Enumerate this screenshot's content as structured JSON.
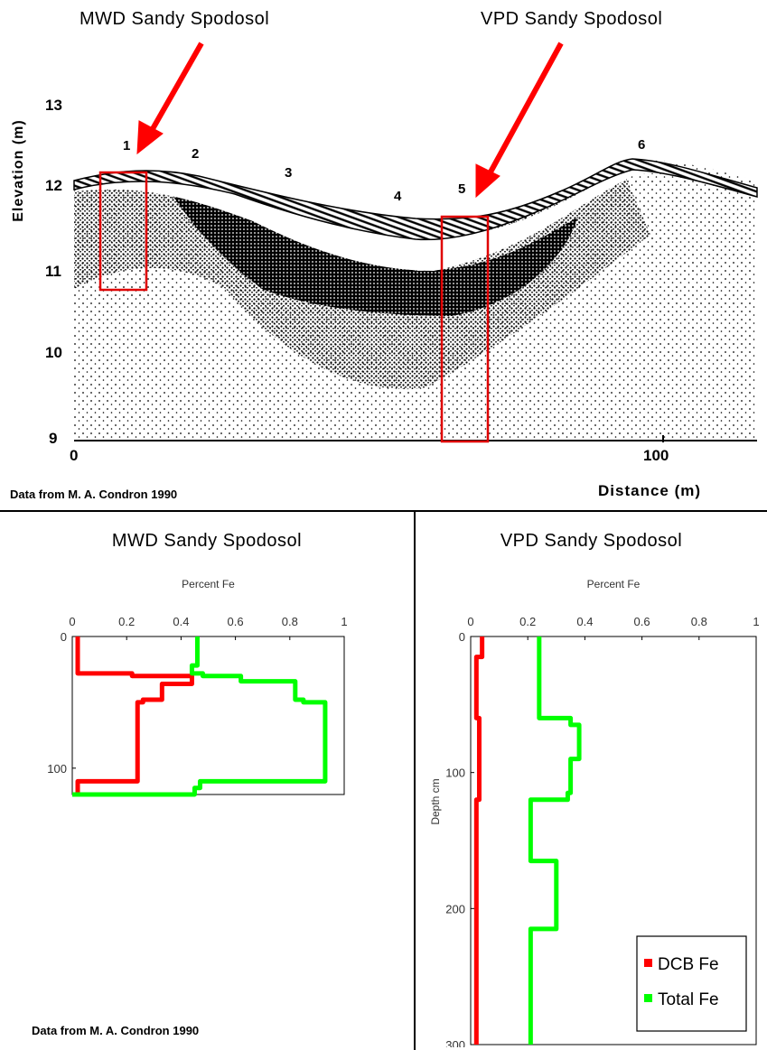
{
  "cross_section": {
    "label_left": "MWD Sandy Spodosol",
    "label_right": "VPD Sandy Spodosol",
    "ylabel": "Elevation (m)",
    "xlabel": "Distance (m)",
    "credit": "Data from M. A. Condron 1990",
    "y_ticks": [
      "13",
      "12",
      "11",
      "10",
      "9"
    ],
    "x_ticks": [
      "0",
      "100"
    ],
    "site_numbers": [
      "1",
      "2",
      "3",
      "4",
      "5",
      "6"
    ],
    "arrow_color": "#ff0000",
    "box_color": "#e00000"
  },
  "chart_data": [
    {
      "type": "line",
      "title": "MWD Sandy Spodosol",
      "xlabel": "Percent Fe",
      "ylabel": "",
      "xlim": [
        0,
        1
      ],
      "ylim": [
        0,
        120
      ],
      "x_ticks": [
        "0",
        "0.2",
        "0.4",
        "0.6",
        "0.8",
        "1"
      ],
      "y_ticks": [
        "0",
        "100"
      ],
      "credit": "Data from M. A. Condron 1990",
      "series": [
        {
          "name": "DCB Fe",
          "color": "#ff0000",
          "points": [
            [
              0.02,
              0
            ],
            [
              0.02,
              28
            ],
            [
              0.22,
              28
            ],
            [
              0.22,
              30
            ],
            [
              0.44,
              30
            ],
            [
              0.44,
              36
            ],
            [
              0.33,
              36
            ],
            [
              0.33,
              48
            ],
            [
              0.26,
              48
            ],
            [
              0.26,
              50
            ],
            [
              0.24,
              50
            ],
            [
              0.24,
              110
            ],
            [
              0.02,
              110
            ],
            [
              0.02,
              120
            ]
          ]
        },
        {
          "name": "Total Fe",
          "color": "#00ff00",
          "points": [
            [
              0.46,
              0
            ],
            [
              0.46,
              22
            ],
            [
              0.44,
              22
            ],
            [
              0.44,
              28
            ],
            [
              0.48,
              28
            ],
            [
              0.48,
              30
            ],
            [
              0.62,
              30
            ],
            [
              0.62,
              34
            ],
            [
              0.82,
              34
            ],
            [
              0.82,
              48
            ],
            [
              0.85,
              48
            ],
            [
              0.85,
              50
            ],
            [
              0.93,
              50
            ],
            [
              0.93,
              110
            ],
            [
              0.47,
              110
            ],
            [
              0.47,
              115
            ],
            [
              0.45,
              115
            ],
            [
              0.45,
              120
            ],
            [
              0.0,
              120
            ]
          ]
        }
      ]
    },
    {
      "type": "line",
      "title": "VPD Sandy Spodosol",
      "xlabel": "Percent Fe",
      "ylabel": "Depth cm",
      "xlim": [
        0,
        1
      ],
      "ylim": [
        0,
        300
      ],
      "x_ticks": [
        "0",
        "0.2",
        "0.4",
        "0.6",
        "0.8",
        "1"
      ],
      "y_ticks": [
        "0",
        "100",
        "200",
        "300"
      ],
      "legend": [
        "DCB Fe",
        "Total Fe"
      ],
      "legend_position": "bottom-right",
      "series": [
        {
          "name": "DCB Fe",
          "color": "#ff0000",
          "points": [
            [
              0.04,
              0
            ],
            [
              0.04,
              15
            ],
            [
              0.02,
              15
            ],
            [
              0.02,
              60
            ],
            [
              0.03,
              60
            ],
            [
              0.03,
              120
            ],
            [
              0.02,
              120
            ],
            [
              0.02,
              300
            ]
          ]
        },
        {
          "name": "Total Fe",
          "color": "#00ff00",
          "points": [
            [
              0.24,
              0
            ],
            [
              0.24,
              60
            ],
            [
              0.35,
              60
            ],
            [
              0.35,
              65
            ],
            [
              0.38,
              65
            ],
            [
              0.38,
              90
            ],
            [
              0.35,
              90
            ],
            [
              0.35,
              115
            ],
            [
              0.34,
              115
            ],
            [
              0.34,
              120
            ],
            [
              0.21,
              120
            ],
            [
              0.21,
              165
            ],
            [
              0.3,
              165
            ],
            [
              0.3,
              215
            ],
            [
              0.21,
              215
            ],
            [
              0.21,
              300
            ]
          ]
        }
      ]
    }
  ]
}
